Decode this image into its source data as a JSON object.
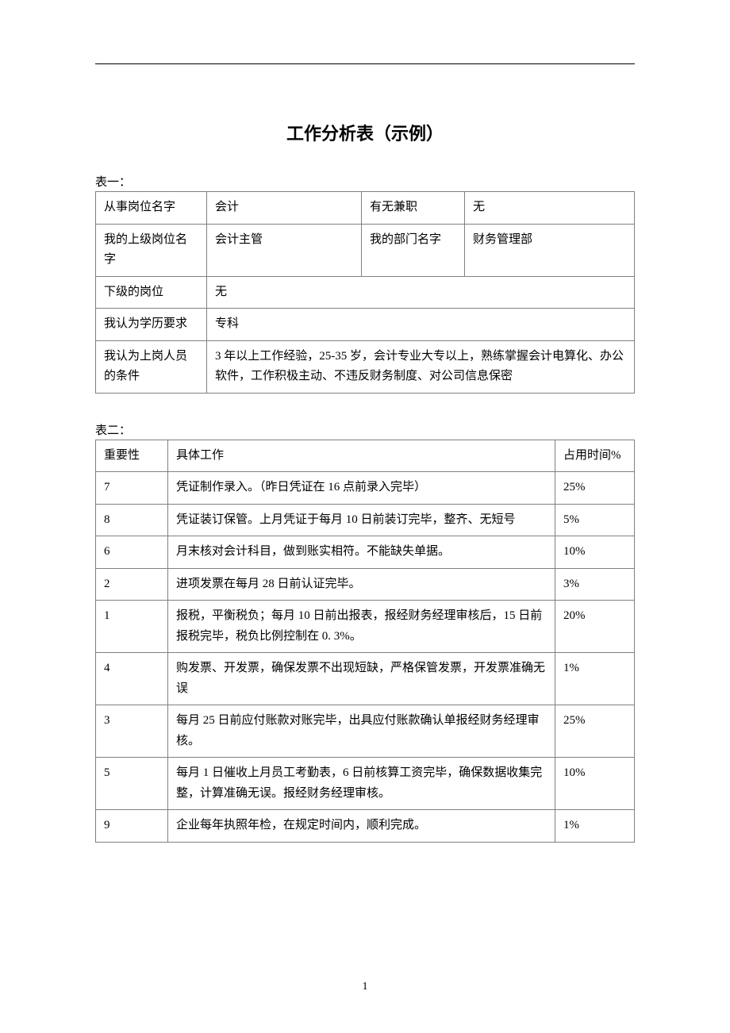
{
  "title": "工作分析表（示例）",
  "table1": {
    "label": "表一：",
    "rows": [
      {
        "cells": [
          {
            "text": "从事岗位名字"
          },
          {
            "text": "会计"
          },
          {
            "text": "有无兼职"
          },
          {
            "text": "无"
          }
        ]
      },
      {
        "cells": [
          {
            "text": "我的上级岗位名字"
          },
          {
            "text": "会计主管"
          },
          {
            "text": "我的部门名字"
          },
          {
            "text": "财务管理部"
          }
        ]
      },
      {
        "cells": [
          {
            "text": "下级的岗位"
          },
          {
            "text": "无",
            "colspan": 3
          }
        ]
      },
      {
        "cells": [
          {
            "text": "我认为学历要求"
          },
          {
            "text": "专科",
            "colspan": 3
          }
        ]
      },
      {
        "cells": [
          {
            "text": "我认为上岗人员的条件"
          },
          {
            "text": "3 年以上工作经验，25-35 岁，会计专业大专以上，熟练掌握会计电算化、办公软件，工作积极主动、不违反财务制度、对公司信息保密",
            "colspan": 3
          }
        ]
      }
    ]
  },
  "table2": {
    "label": "表二：",
    "header": {
      "importance": "重要性",
      "work": "具体工作",
      "time": "占用时间%"
    },
    "rows": [
      {
        "importance": "7",
        "work": "凭证制作录入。（昨日凭证在 16 点前录入完毕）",
        "time": "25%"
      },
      {
        "importance": "8",
        "work": "凭证装订保管。上月凭证于每月 10 日前装订完毕，整齐、无短号",
        "time": "5%"
      },
      {
        "importance": "6",
        "work": "月末核对会计科目，做到账实相符。不能缺失单据。",
        "time": "10%"
      },
      {
        "importance": "2",
        "work": "进项发票在每月 28 日前认证完毕。",
        "time": "3%"
      },
      {
        "importance": "1",
        "work": "报税，平衡税负；每月 10 日前出报表，报经财务经理审核后，15 日前报税完毕，税负比例控制在 0. 3%。",
        "time": "20%"
      },
      {
        "importance": "4",
        "work": "购发票、开发票，确保发票不出现短缺，严格保管发票，开发票准确无误",
        "time": "1%"
      },
      {
        "importance": "3",
        "work": "每月 25 日前应付账款对账完毕，出具应付账款确认单报经财务经理审核。",
        "time": "25%"
      },
      {
        "importance": "5",
        "work": "每月 1 日催收上月员工考勤表，6 日前核算工资完毕，确保数据收集完整，计算准确无误。报经财务经理审核。",
        "time": "10%"
      },
      {
        "importance": "9",
        "work": "企业每年执照年检，在规定时间内，顺利完成。",
        "time": "1%"
      }
    ]
  },
  "pageNumber": "1"
}
